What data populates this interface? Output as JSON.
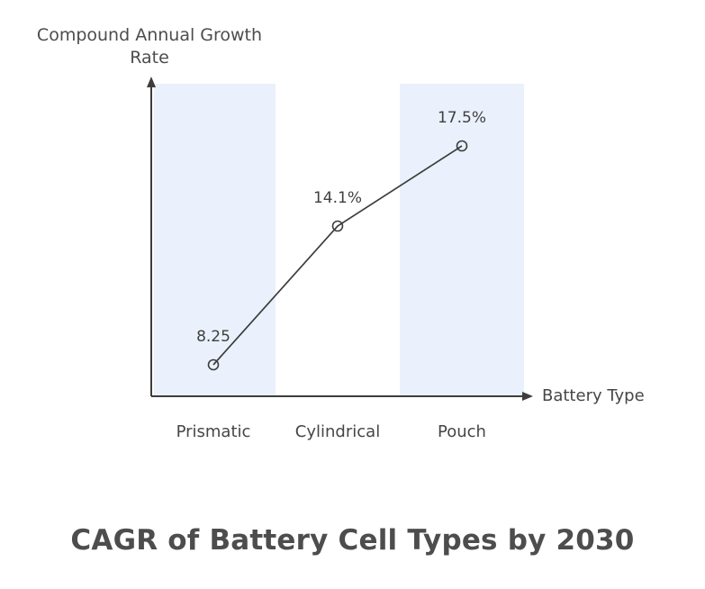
{
  "page": {
    "background_color": "#ffffff"
  },
  "chart_data": {
    "type": "line",
    "title": "CAGR of Battery Cell Types by 2030",
    "ylabel": "Compound Annual Growth Rate",
    "ylabel_lines": [
      "Compound Annual Growth",
      "Rate"
    ],
    "xlabel": "Battery Type",
    "categories": [
      "Prismatic",
      "Cylindrical",
      "Pouch"
    ],
    "values": [
      8.25,
      14.1,
      17.5
    ],
    "value_labels": [
      "8.25",
      "14.1%",
      "17.5%"
    ],
    "highlighted_categories": [
      "Prismatic",
      "Pouch"
    ],
    "marker": "open-circle",
    "grid": false,
    "legend": false,
    "axis_arrows": true,
    "colors": {
      "band": "#eaf1fc",
      "line": "#3d3d3d",
      "axis": "#3d3d3d",
      "text": "#4d4d4d"
    }
  }
}
